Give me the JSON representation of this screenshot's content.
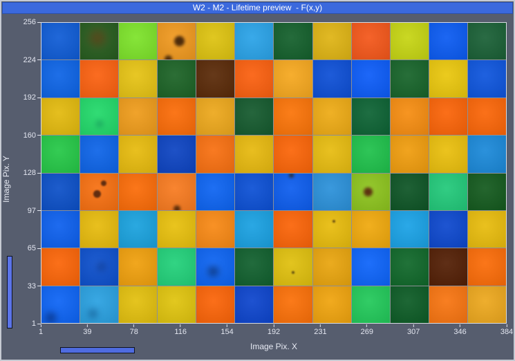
{
  "window": {
    "title": "W2 - M2 - Lifetime preview  - F(x,y)",
    "titlebar_color": "#3b69dd",
    "background_color": "#565d6e",
    "border_color": "#c6cad3"
  },
  "axes": {
    "x_label": "Image Pix. X",
    "y_label": "Image Pix. Y",
    "x_ticks": [
      "1",
      "39",
      "78",
      "116",
      "154",
      "192",
      "231",
      "269",
      "307",
      "346",
      "384"
    ],
    "y_ticks": [
      "256",
      "224",
      "192",
      "160",
      "128",
      "97",
      "65",
      "33",
      "1"
    ],
    "tick_color": "#e3e6f0"
  },
  "sliders": {
    "vertical_color": "#5b74e8",
    "horizontal_color": "#4f6ce0"
  },
  "chart_data": {
    "type": "heatmap",
    "title": "Lifetime preview F(x,y)",
    "xlabel": "Image Pix. X",
    "ylabel": "Image Pix. Y",
    "x_range": [
      1,
      384
    ],
    "y_range": [
      1,
      256
    ],
    "columns": 12,
    "rows": 8,
    "grid": [
      [
        "#0f5cd6",
        "#265c1e",
        "#7de32a",
        "#f0991f",
        "#dec310",
        "#2aa3e8",
        "#14602c",
        "#dfb414",
        "#f4571a",
        "#c6d513",
        "#0b5bf2",
        "#1a6036"
      ],
      [
        "#0d64e6",
        "#fb6110",
        "#e6c314",
        "#1c6326",
        "#5a2a08",
        "#fb600f",
        "#f6a81f",
        "#0d4fd6",
        "#0c5cf8",
        "#17642a",
        "#eac70d",
        "#0e55dd"
      ],
      [
        "#e3ba0e",
        "#22d96a",
        "#ef9c1b",
        "#fb6c08",
        "#eda81c",
        "#155a2e",
        "#fb7408",
        "#eeab15",
        "#0d6334",
        "#f68d11",
        "#fb6408",
        "#fb6608"
      ],
      [
        "#25c847",
        "#0d64e8",
        "#e7bb0e",
        "#0d44c2",
        "#f87011",
        "#e7b90f",
        "#fb6508",
        "#e7bc10",
        "#1fc14b",
        "#f09d0e",
        "#eabf0d",
        "#1b89d9"
      ],
      [
        "#0c50c8",
        "#f77011",
        "#fb6c08",
        "#f87b20",
        "#0d64f2",
        "#0c50d5",
        "#0d5dee",
        "#2b91da",
        "#8dc41e",
        "#0e5526",
        "#22c97a",
        "#145a1e"
      ],
      [
        "#0d60ee",
        "#e7bb0d",
        "#1aa2de",
        "#e8c00d",
        "#f88915",
        "#1aa1e2",
        "#fb6408",
        "#e8bc0d",
        "#f0a90d",
        "#1aa2e6",
        "#0d48ce",
        "#e8bc0d"
      ],
      [
        "#fb6508",
        "#0d50cd",
        "#f0a00d",
        "#22d17a",
        "#0d64f2",
        "#11602e",
        "#e0c00e",
        "#e9a50e",
        "#0d64fa",
        "#10682a",
        "#531f05",
        "#fb6c08"
      ],
      [
        "#0d64f5",
        "#2aa1e1",
        "#e3c00e",
        "#e0c40e",
        "#fb6408",
        "#0d45cd",
        "#fb7008",
        "#f0a40e",
        "#22c95a",
        "#0d5c26",
        "#f87511",
        "#eda81e"
      ]
    ],
    "spots": [
      {
        "row": 0,
        "col": 1,
        "x": 45,
        "y": 42,
        "d": 24,
        "color": "#6b3410",
        "blur": 6,
        "opacity": 0.55
      },
      {
        "row": 0,
        "col": 3,
        "x": 56,
        "y": 50,
        "d": 15,
        "color": "#45260a",
        "blur": 2,
        "opacity": 0.95
      },
      {
        "row": 0,
        "col": 3,
        "x": 28,
        "y": 98,
        "d": 11,
        "color": "#45260a",
        "blur": 2,
        "opacity": 0.9
      },
      {
        "row": 4,
        "col": 1,
        "x": 62,
        "y": 28,
        "d": 8,
        "color": "#5a2a10",
        "blur": 1,
        "opacity": 0.95
      },
      {
        "row": 4,
        "col": 1,
        "x": 44,
        "y": 56,
        "d": 11,
        "color": "#5a2a10",
        "blur": 1,
        "opacity": 0.95
      },
      {
        "row": 4,
        "col": 3,
        "x": 50,
        "y": 96,
        "d": 10,
        "color": "#4a2408",
        "blur": 2,
        "opacity": 0.9
      },
      {
        "row": 4,
        "col": 6,
        "x": 46,
        "y": 6,
        "d": 7,
        "color": "#2c2008",
        "blur": 2,
        "opacity": 0.8
      },
      {
        "row": 4,
        "col": 8,
        "x": 44,
        "y": 50,
        "d": 13,
        "color": "#5a2a10",
        "blur": 2,
        "opacity": 0.95
      },
      {
        "row": 5,
        "col": 7,
        "x": 56,
        "y": 28,
        "d": 4,
        "color": "#5a4010",
        "blur": 1,
        "opacity": 0.9
      },
      {
        "row": 6,
        "col": 6,
        "x": 50,
        "y": 66,
        "d": 4,
        "color": "#504010",
        "blur": 1,
        "opacity": 0.9
      },
      {
        "row": 6,
        "col": 4,
        "x": 44,
        "y": 62,
        "d": 15,
        "color": "#0a2a60",
        "blur": 5,
        "opacity": 0.7
      },
      {
        "row": 6,
        "col": 1,
        "x": 56,
        "y": 50,
        "d": 13,
        "color": "#0a2c70",
        "blur": 5,
        "opacity": 0.5
      },
      {
        "row": 7,
        "col": 0,
        "x": 24,
        "y": 86,
        "d": 15,
        "color": "#082a70",
        "blur": 5,
        "opacity": 0.7
      },
      {
        "row": 7,
        "col": 1,
        "x": 34,
        "y": 74,
        "d": 13,
        "color": "#0c4a80",
        "blur": 5,
        "opacity": 0.6
      },
      {
        "row": 2,
        "col": 1,
        "x": 50,
        "y": 70,
        "d": 10,
        "color": "#0a7050",
        "blur": 4,
        "opacity": 0.45
      }
    ]
  }
}
